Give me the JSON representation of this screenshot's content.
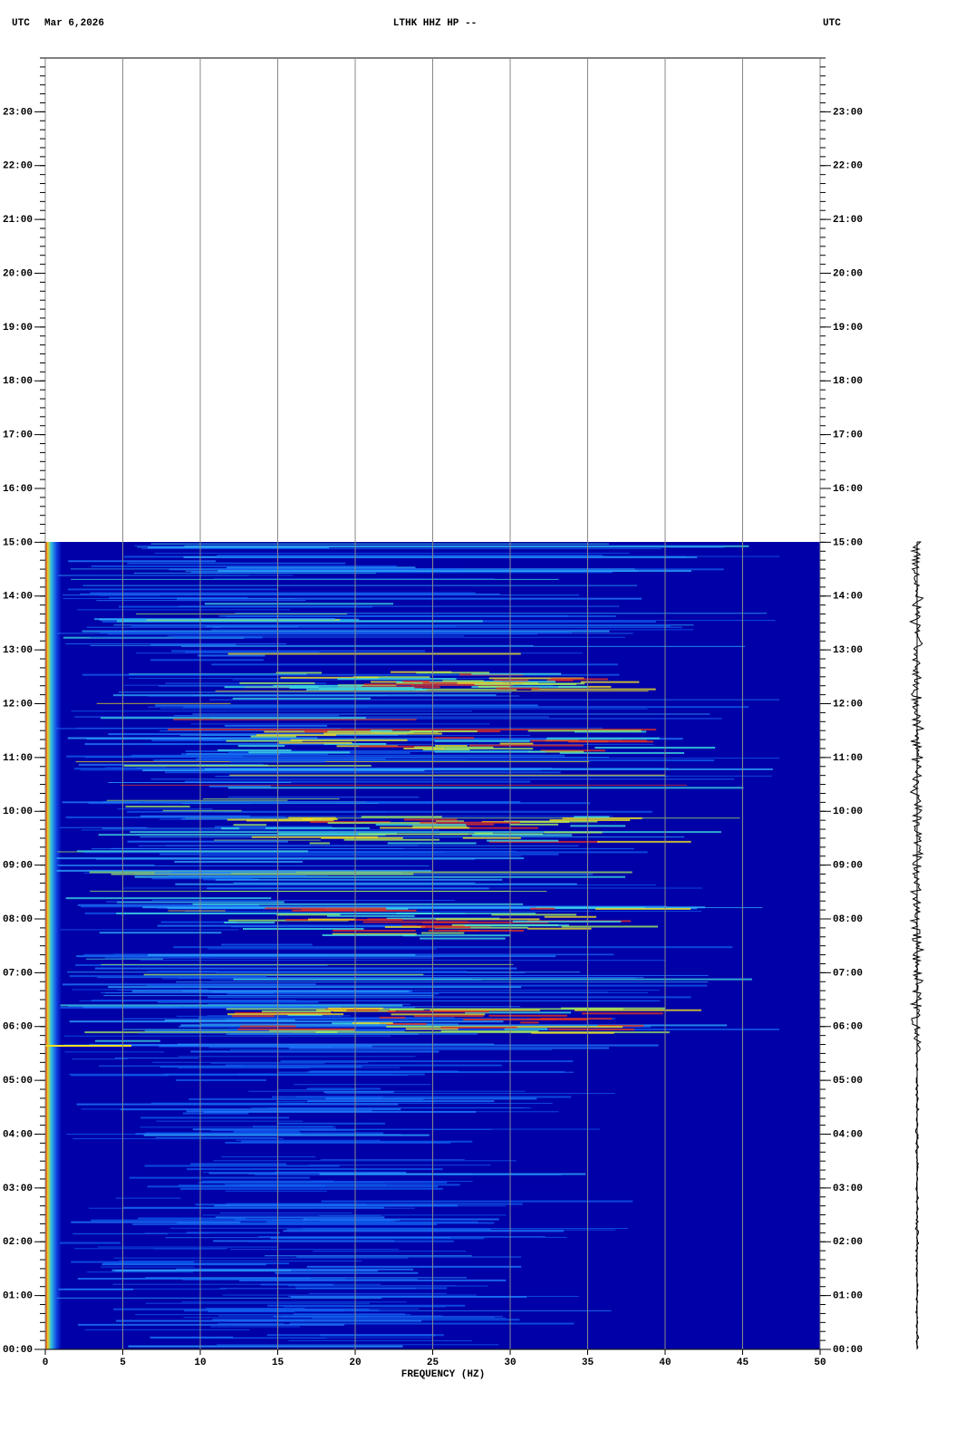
{
  "chart_data": {
    "type": "spectrogram",
    "title": "LTHK HHZ HP --",
    "time_zone": "UTC",
    "date": "Mar 6,2026",
    "x_label": "FREQUENCY (HZ)",
    "xlim": [
      0,
      50
    ],
    "xticks": [
      0,
      5,
      10,
      15,
      20,
      25,
      30,
      35,
      40,
      45,
      50
    ],
    "ylim": [
      0,
      24
    ],
    "yticks": [
      {
        "value": 0,
        "label": "00:00"
      },
      {
        "value": 1,
        "label": "01:00"
      },
      {
        "value": 2,
        "label": "02:00"
      },
      {
        "value": 3,
        "label": "03:00"
      },
      {
        "value": 4,
        "label": "04:00"
      },
      {
        "value": 5,
        "label": "05:00"
      },
      {
        "value": 6,
        "label": "06:00"
      },
      {
        "value": 7,
        "label": "07:00"
      },
      {
        "value": 8,
        "label": "08:00"
      },
      {
        "value": 9,
        "label": "09:00"
      },
      {
        "value": 10,
        "label": "10:00"
      },
      {
        "value": 11,
        "label": "11:00"
      },
      {
        "value": 12,
        "label": "12:00"
      },
      {
        "value": 13,
        "label": "13:00"
      },
      {
        "value": 14,
        "label": "14:00"
      },
      {
        "value": 15,
        "label": "15:00"
      },
      {
        "value": 16,
        "label": "16:00"
      },
      {
        "value": 17,
        "label": "17:00"
      },
      {
        "value": 18,
        "label": "18:00"
      },
      {
        "value": 19,
        "label": "19:00"
      },
      {
        "value": 20,
        "label": "20:00"
      },
      {
        "value": 21,
        "label": "21:00"
      },
      {
        "value": 22,
        "label": "22:00"
      },
      {
        "value": 23,
        "label": "23:00"
      }
    ],
    "grid": true
  }
}
